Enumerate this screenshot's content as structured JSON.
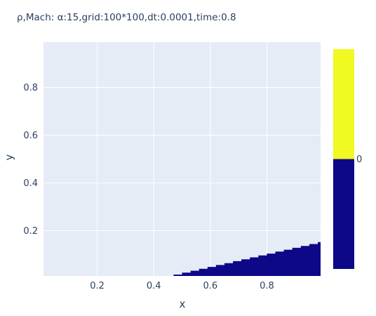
{
  "chart_data": {
    "type": "contour",
    "title": "ρ,Mach: α:15,grid:100*100,dt:0.0001,time:0.8",
    "xlabel": "x",
    "ylabel": "y",
    "xlim": [
      0.01,
      0.99
    ],
    "ylim": [
      0.01,
      0.99
    ],
    "x_ticks": [
      0.2,
      0.4,
      0.6,
      0.8
    ],
    "y_ticks": [
      0.2,
      0.4,
      0.6,
      0.8
    ],
    "grid": true,
    "plot_background": "#e5ecf6",
    "low_region_color": "#0d0887",
    "high_region_color": "#f0f921",
    "low_region_boundary": [
      [
        0.44,
        0.01
      ],
      [
        0.47,
        0.01
      ],
      [
        0.47,
        0.016
      ],
      [
        0.5,
        0.016
      ],
      [
        0.5,
        0.024
      ],
      [
        0.53,
        0.024
      ],
      [
        0.53,
        0.032
      ],
      [
        0.56,
        0.032
      ],
      [
        0.56,
        0.04
      ],
      [
        0.59,
        0.04
      ],
      [
        0.59,
        0.048
      ],
      [
        0.62,
        0.048
      ],
      [
        0.62,
        0.056
      ],
      [
        0.65,
        0.056
      ],
      [
        0.65,
        0.064
      ],
      [
        0.68,
        0.064
      ],
      [
        0.68,
        0.072
      ],
      [
        0.71,
        0.072
      ],
      [
        0.71,
        0.08
      ],
      [
        0.74,
        0.08
      ],
      [
        0.74,
        0.088
      ],
      [
        0.77,
        0.088
      ],
      [
        0.77,
        0.096
      ],
      [
        0.8,
        0.096
      ],
      [
        0.8,
        0.104
      ],
      [
        0.83,
        0.104
      ],
      [
        0.83,
        0.112
      ],
      [
        0.86,
        0.112
      ],
      [
        0.86,
        0.12
      ],
      [
        0.89,
        0.12
      ],
      [
        0.89,
        0.128
      ],
      [
        0.92,
        0.128
      ],
      [
        0.92,
        0.136
      ],
      [
        0.95,
        0.136
      ],
      [
        0.95,
        0.144
      ],
      [
        0.98,
        0.144
      ],
      [
        0.98,
        0.152
      ],
      [
        0.99,
        0.152
      ],
      [
        0.99,
        0.01
      ]
    ],
    "colorbar": {
      "tick_labels": [
        "0"
      ],
      "segments": [
        {
          "color": "#f0f921",
          "from": 0.5,
          "to": 1.0
        },
        {
          "color": "#0d0887",
          "from": 0.0,
          "to": 0.5
        }
      ],
      "tick_position": 0.5
    }
  }
}
